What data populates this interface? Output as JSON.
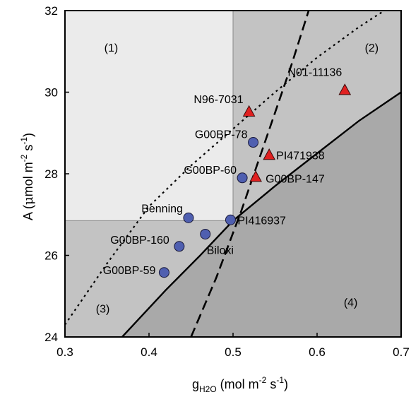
{
  "chart_data": {
    "type": "scatter",
    "xlim": [
      0.3,
      0.7
    ],
    "ylim": [
      24,
      32
    ],
    "x_ticks": [
      "0.3",
      "0.4",
      "0.5",
      "0.6",
      "0.7"
    ],
    "y_ticks": [
      "24",
      "26",
      "28",
      "30",
      "32"
    ],
    "xlabel": {
      "base": "g",
      "sub": "H2O",
      "units": " (mol m",
      "exp1": "-2",
      "mid": " s",
      "exp2": "-1",
      "end": ")"
    },
    "ylabel": {
      "base": "A (",
      "mu": "μ",
      "units": "mol m",
      "exp1": "-2",
      "mid": " s",
      "exp2": "-1",
      "end": ")"
    },
    "threshold": {
      "x": 0.5,
      "y": 26.85
    },
    "regions": [
      {
        "label": "(1)",
        "x": 0.355,
        "y": 31.0,
        "color": "#ebebeb"
      },
      {
        "label": "(2)",
        "x": 0.665,
        "y": 31.0,
        "color": "#c3c3c3"
      },
      {
        "label": "(3)",
        "x": 0.345,
        "y": 24.6,
        "color": "#c3c3c3"
      },
      {
        "label": "(4)",
        "x": 0.64,
        "y": 24.75,
        "color": "#a9a9a9"
      }
    ],
    "series": [
      {
        "marker": "circle",
        "color": "#4f5fb0",
        "points": [
          {
            "label": "G00BP-78",
            "x": 0.524,
            "y": 28.77
          },
          {
            "label": "G00BP-60",
            "x": 0.511,
            "y": 27.9
          },
          {
            "label": "Benning",
            "x": 0.447,
            "y": 26.92
          },
          {
            "label": "PI416937",
            "x": 0.497,
            "y": 26.87
          },
          {
            "label": "Biloxi",
            "x": 0.467,
            "y": 26.52
          },
          {
            "label": "G00BP-160",
            "x": 0.436,
            "y": 26.22
          },
          {
            "label": "G00BP-59",
            "x": 0.418,
            "y": 25.58
          }
        ]
      },
      {
        "marker": "triangle",
        "color": "#e02020",
        "points": [
          {
            "label": "N01-11136",
            "x": 0.633,
            "y": 30.05
          },
          {
            "label": "N96-7031",
            "x": 0.519,
            "y": 29.52
          },
          {
            "label": "PI471938",
            "x": 0.543,
            "y": 28.46
          },
          {
            "label": "G00BP-147",
            "x": 0.527,
            "y": 27.92
          }
        ]
      }
    ],
    "lines": [
      {
        "style": "solid",
        "points": [
          [
            0.368,
            24.0
          ],
          [
            0.42,
            25.15
          ],
          [
            0.46,
            25.98
          ],
          [
            0.5,
            26.85
          ],
          [
            0.55,
            27.7
          ],
          [
            0.6,
            28.5
          ],
          [
            0.65,
            29.3
          ],
          [
            0.7,
            30.0
          ]
        ]
      },
      {
        "style": "dashed",
        "points": [
          [
            0.45,
            24.0
          ],
          [
            0.48,
            25.45
          ],
          [
            0.51,
            27.1
          ],
          [
            0.54,
            28.9
          ],
          [
            0.57,
            30.7
          ],
          [
            0.59,
            32.0
          ]
        ]
      },
      {
        "style": "dotted",
        "points": [
          [
            0.3,
            24.3
          ],
          [
            0.35,
            25.8
          ],
          [
            0.4,
            27.2
          ],
          [
            0.45,
            28.2
          ],
          [
            0.5,
            29.1
          ],
          [
            0.55,
            30.0
          ],
          [
            0.6,
            30.85
          ],
          [
            0.65,
            31.6
          ],
          [
            0.68,
            32.0
          ]
        ]
      }
    ]
  }
}
